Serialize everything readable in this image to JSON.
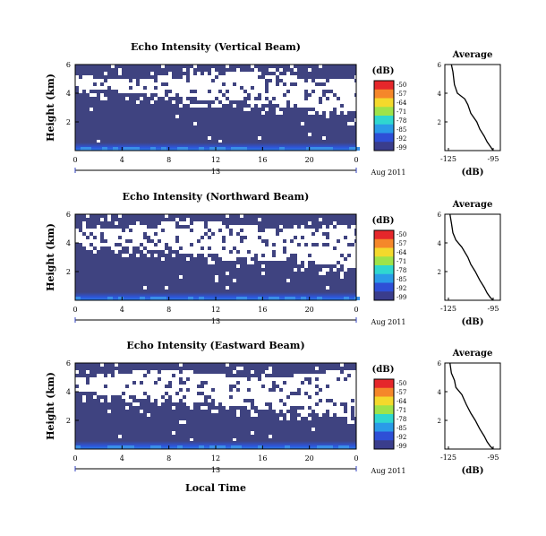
{
  "figure": {
    "xlabel": "Local Time",
    "date_label": "Aug 2011",
    "day_label": "13",
    "colorbar_unit": "(dB)",
    "colorbar_ticks": [
      "-50",
      "-57",
      "-64",
      "-71",
      "-78",
      "-85",
      "-92",
      "-99"
    ],
    "colorbar_colors": [
      "#e5272b",
      "#f5872a",
      "#f4d92c",
      "#9ee34a",
      "#2fd7d0",
      "#2a9be8",
      "#2e4fd6",
      "#3a3d8c"
    ],
    "background_color": "#3f4380"
  },
  "chart_data": [
    {
      "type": "heatmap",
      "title": "Echo Intensity (Vertical Beam)",
      "ylabel": "Height (km)",
      "xlim": [
        0,
        24
      ],
      "ylim": [
        0,
        6
      ],
      "xticks": [
        "0",
        "4",
        "8",
        "12",
        "16",
        "20",
        "0"
      ],
      "yticks": [
        "2",
        "4",
        "6"
      ],
      "clim": [
        -99,
        -50
      ],
      "description_of_structure": "",
      "profile": {
        "title": "Average",
        "xlabel": "(dB)",
        "xticks": [
          "-125",
          "-95"
        ],
        "yticks": [
          "2",
          "4",
          "6"
        ],
        "x": [
          -123,
          -122,
          -121,
          -119,
          -114,
          -112,
          -110,
          -106,
          -104,
          -101,
          -99,
          -97,
          -95
        ],
        "y": [
          6.0,
          5.5,
          4.6,
          4.0,
          3.6,
          3.2,
          2.6,
          2.0,
          1.5,
          1.0,
          0.6,
          0.3,
          0.0
        ]
      }
    },
    {
      "type": "heatmap",
      "title": "Echo Intensity (Northward Beam)",
      "ylabel": "Height (km)",
      "xlim": [
        0,
        24
      ],
      "ylim": [
        0,
        6
      ],
      "xticks": [
        "0",
        "4",
        "8",
        "12",
        "16",
        "20",
        "0"
      ],
      "yticks": [
        "2",
        "4",
        "6"
      ],
      "clim": [
        -99,
        -50
      ],
      "profile": {
        "title": "Average",
        "xlabel": "(dB)",
        "xticks": [
          "-125",
          "-95"
        ],
        "yticks": [
          "2",
          "4",
          "6"
        ],
        "x": [
          -124,
          -123,
          -122,
          -120,
          -116,
          -112,
          -110,
          -107,
          -104,
          -101,
          -99,
          -97,
          -95
        ],
        "y": [
          6.0,
          5.4,
          4.7,
          4.2,
          3.7,
          3.0,
          2.5,
          2.0,
          1.4,
          0.9,
          0.5,
          0.2,
          0.0
        ]
      }
    },
    {
      "type": "heatmap",
      "title": "Echo Intensity (Eastward Beam)",
      "ylabel": "Height (km)",
      "xlim": [
        0,
        24
      ],
      "ylim": [
        0,
        6
      ],
      "xticks": [
        "0",
        "4",
        "8",
        "12",
        "16",
        "20",
        "0"
      ],
      "yticks": [
        "2",
        "4",
        "6"
      ],
      "clim": [
        -99,
        -50
      ],
      "profile": {
        "title": "Average",
        "xlabel": "(dB)",
        "xticks": [
          "-125",
          "-95"
        ],
        "yticks": [
          "2",
          "4",
          "6"
        ],
        "x": [
          -124,
          -123,
          -121,
          -120,
          -116,
          -113,
          -110,
          -107,
          -104,
          -101,
          -99,
          -97,
          -95
        ],
        "y": [
          6.0,
          5.3,
          4.8,
          4.3,
          3.8,
          3.1,
          2.5,
          2.0,
          1.4,
          0.9,
          0.5,
          0.2,
          0.0
        ]
      }
    }
  ]
}
